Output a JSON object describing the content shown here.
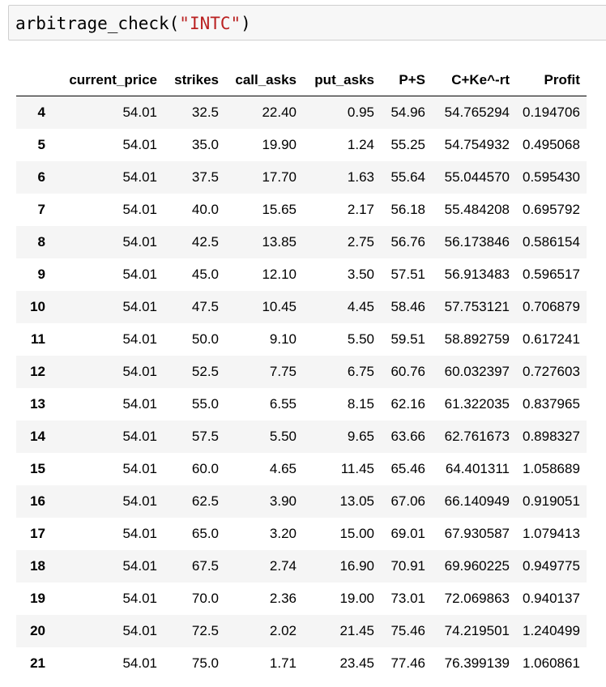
{
  "code_cell": {
    "func": "arbitrage_check(",
    "arg": "\"INTC\"",
    "close": ")"
  },
  "table": {
    "columns": [
      "current_price",
      "strikes",
      "call_asks",
      "put_asks",
      "P+S",
      "C+Ke^-rt",
      "Profit"
    ],
    "rows": [
      {
        "index": "4",
        "cells": [
          "54.01",
          "32.5",
          "22.40",
          "0.95",
          "54.96",
          "54.765294",
          "0.194706"
        ]
      },
      {
        "index": "5",
        "cells": [
          "54.01",
          "35.0",
          "19.90",
          "1.24",
          "55.25",
          "54.754932",
          "0.495068"
        ]
      },
      {
        "index": "6",
        "cells": [
          "54.01",
          "37.5",
          "17.70",
          "1.63",
          "55.64",
          "55.044570",
          "0.595430"
        ]
      },
      {
        "index": "7",
        "cells": [
          "54.01",
          "40.0",
          "15.65",
          "2.17",
          "56.18",
          "55.484208",
          "0.695792"
        ]
      },
      {
        "index": "8",
        "cells": [
          "54.01",
          "42.5",
          "13.85",
          "2.75",
          "56.76",
          "56.173846",
          "0.586154"
        ]
      },
      {
        "index": "9",
        "cells": [
          "54.01",
          "45.0",
          "12.10",
          "3.50",
          "57.51",
          "56.913483",
          "0.596517"
        ]
      },
      {
        "index": "10",
        "cells": [
          "54.01",
          "47.5",
          "10.45",
          "4.45",
          "58.46",
          "57.753121",
          "0.706879"
        ]
      },
      {
        "index": "11",
        "cells": [
          "54.01",
          "50.0",
          "9.10",
          "5.50",
          "59.51",
          "58.892759",
          "0.617241"
        ]
      },
      {
        "index": "12",
        "cells": [
          "54.01",
          "52.5",
          "7.75",
          "6.75",
          "60.76",
          "60.032397",
          "0.727603"
        ]
      },
      {
        "index": "13",
        "cells": [
          "54.01",
          "55.0",
          "6.55",
          "8.15",
          "62.16",
          "61.322035",
          "0.837965"
        ]
      },
      {
        "index": "14",
        "cells": [
          "54.01",
          "57.5",
          "5.50",
          "9.65",
          "63.66",
          "62.761673",
          "0.898327"
        ]
      },
      {
        "index": "15",
        "cells": [
          "54.01",
          "60.0",
          "4.65",
          "11.45",
          "65.46",
          "64.401311",
          "1.058689"
        ]
      },
      {
        "index": "16",
        "cells": [
          "54.01",
          "62.5",
          "3.90",
          "13.05",
          "67.06",
          "66.140949",
          "0.919051"
        ]
      },
      {
        "index": "17",
        "cells": [
          "54.01",
          "65.0",
          "3.20",
          "15.00",
          "69.01",
          "67.930587",
          "1.079413"
        ]
      },
      {
        "index": "18",
        "cells": [
          "54.01",
          "67.5",
          "2.74",
          "16.90",
          "70.91",
          "69.960225",
          "0.949775"
        ]
      },
      {
        "index": "19",
        "cells": [
          "54.01",
          "70.0",
          "2.36",
          "19.00",
          "73.01",
          "72.069863",
          "0.940137"
        ]
      },
      {
        "index": "20",
        "cells": [
          "54.01",
          "72.5",
          "2.02",
          "21.45",
          "75.46",
          "74.219501",
          "1.240499"
        ]
      },
      {
        "index": "21",
        "cells": [
          "54.01",
          "75.0",
          "1.71",
          "23.45",
          "77.46",
          "76.399139",
          "1.060861"
        ]
      }
    ]
  },
  "colors": {
    "string_literal": "#ba2121",
    "cell_background": "#f7f7f7",
    "cell_border": "#cfcfcf",
    "row_stripe": "#f5f5f5"
  }
}
